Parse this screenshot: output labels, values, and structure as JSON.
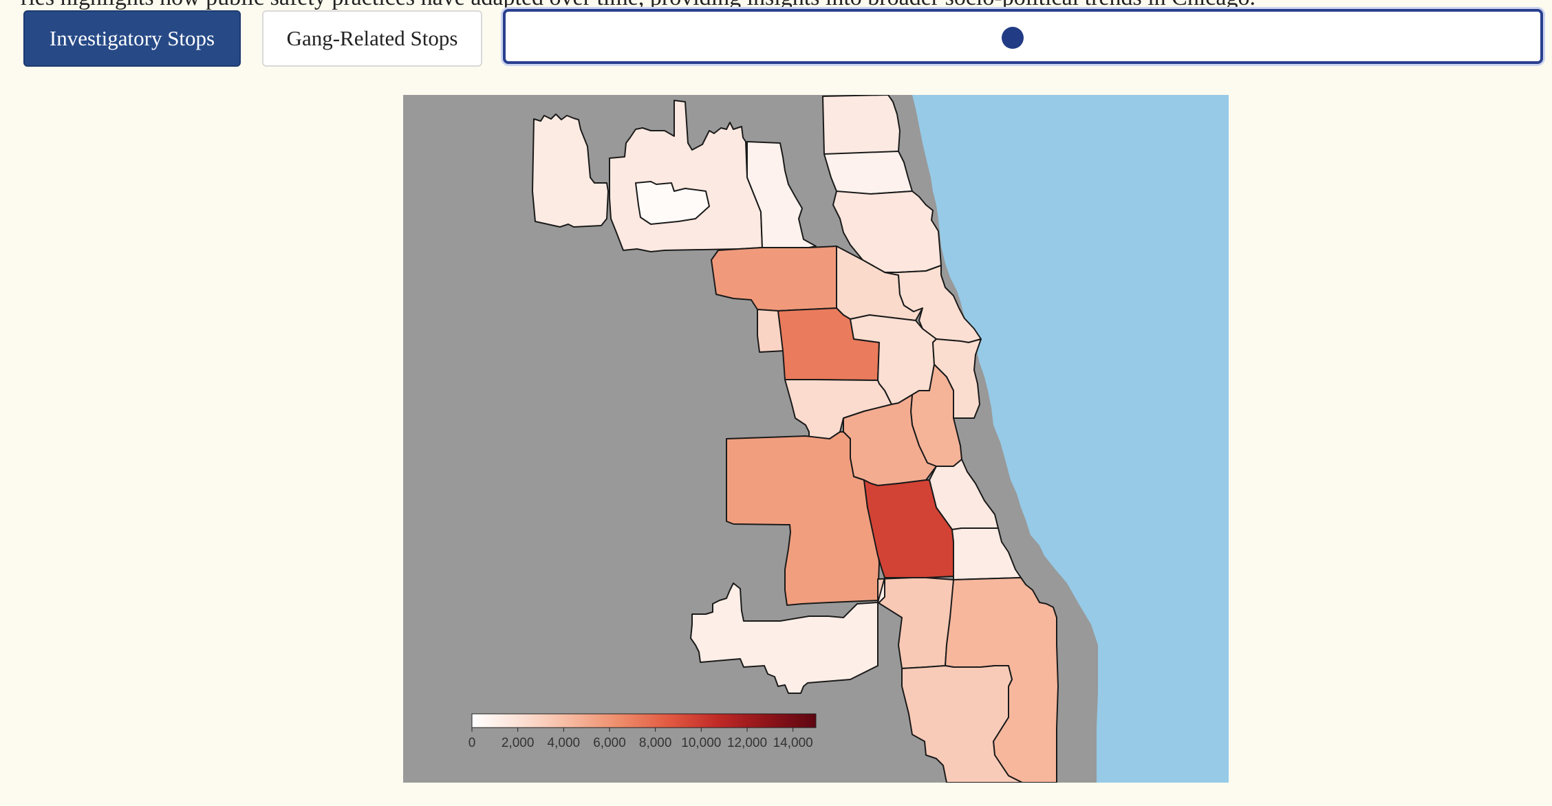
{
  "intro_text": "ries highlights how public safety practices have adapted over time, providing insights into broader socio-political trends in Chicago.",
  "toolbar": {
    "investigatory_label": "Investigatory Stops",
    "gang_label": "Gang-Related Stops",
    "active_tab": "Investigatory Stops"
  },
  "slider": {
    "value_fraction": 0.49
  },
  "colors": {
    "button_active": "#274a87",
    "slider_border": "#2a3f8f",
    "slider_knob": "#223b85",
    "map_background": "#999999",
    "lake": "#96cae7",
    "page_background": "#fdfbef"
  },
  "map": {
    "legend": {
      "min": 0,
      "max": 15000,
      "ticks": [
        "0",
        "2,000",
        "4,000",
        "6,000",
        "8,000",
        "10,000",
        "12,000",
        "14,000"
      ],
      "tick_values": [
        0,
        2000,
        4000,
        6000,
        8000,
        10000,
        12000,
        14000
      ],
      "color_stops": [
        "#ffffff",
        "#fbe0d4",
        "#f6b9a0",
        "#ee8d6b",
        "#e25a42",
        "#c02a27",
        "#8f1419",
        "#5d0612"
      ]
    },
    "districts": [
      {
        "name": "district-16-west",
        "value": 1400
      },
      {
        "name": "district-16-east",
        "value": 1500
      },
      {
        "name": "ohare-area",
        "value": 300
      },
      {
        "name": "district-17",
        "value": 900
      },
      {
        "name": "district-24",
        "value": 1500
      },
      {
        "name": "district-20",
        "value": 900
      },
      {
        "name": "district-19-north",
        "value": 1700
      },
      {
        "name": "district-25",
        "value": 5800
      },
      {
        "name": "district-14",
        "value": 2500
      },
      {
        "name": "district-19-south",
        "value": 2200
      },
      {
        "name": "district-15",
        "value": 2800
      },
      {
        "name": "district-11",
        "value": 7200
      },
      {
        "name": "district-12",
        "value": 2200
      },
      {
        "name": "district-18",
        "value": 2300
      },
      {
        "name": "district-1",
        "value": 4600
      },
      {
        "name": "district-10",
        "value": 2400
      },
      {
        "name": "district-9",
        "value": 4900
      },
      {
        "name": "district-2",
        "value": 1500
      },
      {
        "name": "district-8",
        "value": 5600
      },
      {
        "name": "district-7",
        "value": 9600
      },
      {
        "name": "district-3",
        "value": 1300
      },
      {
        "name": "district-6",
        "value": 3400
      },
      {
        "name": "district-4",
        "value": 4400
      },
      {
        "name": "district-22",
        "value": 1200
      },
      {
        "name": "district-5",
        "value": 3300
      }
    ]
  }
}
